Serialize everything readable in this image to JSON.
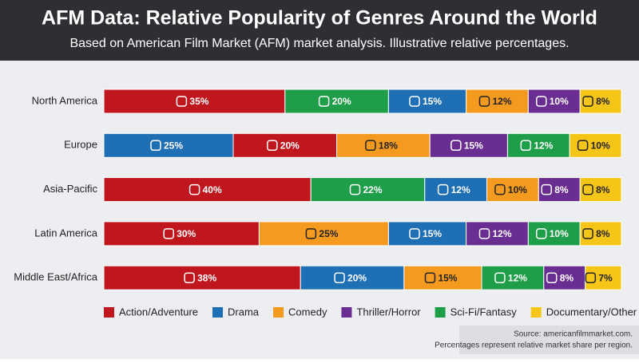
{
  "chart_data": {
    "type": "stacked-bar-horizontal",
    "title": "AFM Data: Relative Popularity of Genres Around the World",
    "subtitle": "Based on American Film Market (AFM) market analysis. Illustrative relative percentages.",
    "categories": [
      "North America",
      "Europe",
      "Asia-Pacific",
      "Latin America",
      "Middle East/Africa"
    ],
    "series": [
      {
        "name": "Action/Adventure",
        "color": "#c0171e",
        "values": [
          35,
          20,
          40,
          30,
          38
        ],
        "value_labels": [
          "35%",
          "20%",
          "40%",
          "30%",
          "38%"
        ]
      },
      {
        "name": "Drama",
        "color": "#1f6fb5",
        "values": [
          15,
          25,
          12,
          15,
          20
        ],
        "value_labels": [
          "15%",
          "25%",
          "12%",
          "15%",
          "20%"
        ]
      },
      {
        "name": "Comedy",
        "color": "#f39a1f",
        "values": [
          12,
          18,
          10,
          25,
          15
        ],
        "value_labels": [
          "12%",
          "18%",
          "10%",
          "25%",
          "15%"
        ]
      },
      {
        "name": "Thriller/Horror",
        "color": "#6a2d91",
        "values": [
          10,
          15,
          8,
          12,
          8
        ],
        "value_labels": [
          "10%",
          "15%",
          "8%",
          "12%",
          "8%"
        ]
      },
      {
        "name": "Sci-Fi/Fantasy",
        "color": "#1f9e4a",
        "values": [
          20,
          12,
          22,
          10,
          12
        ],
        "value_labels": [
          "20%",
          "12%",
          "22%",
          "10%",
          "12%"
        ]
      },
      {
        "name": "Documentary/Other",
        "color": "#f5c518",
        "values": [
          8,
          10,
          8,
          8,
          7
        ],
        "value_labels": [
          "8%",
          "10%",
          "8%",
          "8%",
          "7%"
        ]
      }
    ],
    "source": "Source: americanfilmmarket.com.",
    "note": "Percentages represent relative market share per region."
  }
}
